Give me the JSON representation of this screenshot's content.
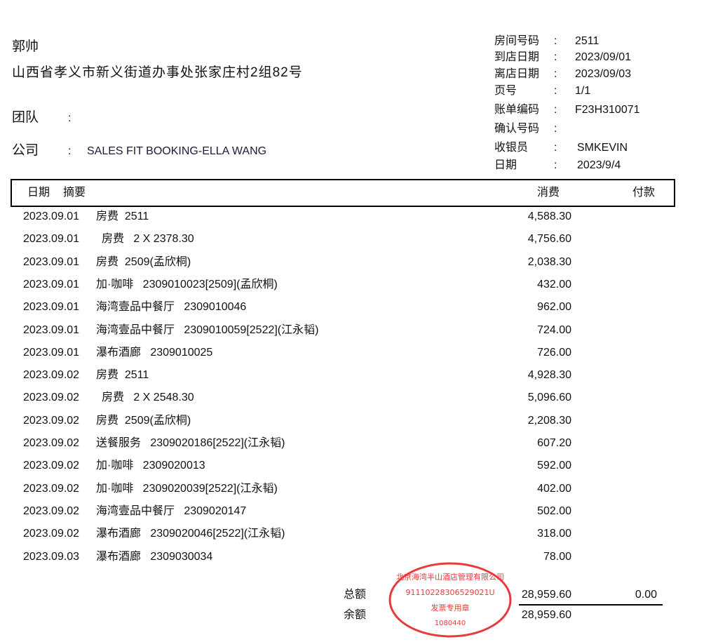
{
  "guest": {
    "name": "郭帅",
    "address": "山西省孝义市新义街道办事处张家庄村2组82号",
    "team_label": "团队",
    "team_value": "",
    "company_label": "公司",
    "company_value": "SALES FIT BOOKING-ELLA WANG",
    "colon": ":"
  },
  "info": [
    {
      "label": "房间号码",
      "value": "2511"
    },
    {
      "label": "到店日期",
      "value": "2023/09/01"
    },
    {
      "label": "离店日期",
      "value": "2023/09/03"
    },
    {
      "label": "页号",
      "value": "1/1"
    },
    {
      "label": "账单编码",
      "value": "F23H310071"
    },
    {
      "label": "确认号码",
      "value": ""
    },
    {
      "label": "收银员",
      "value": "SMKEVIN"
    },
    {
      "label": "日期",
      "value": "2023/9/4"
    }
  ],
  "table": {
    "headers": {
      "date": "日期",
      "summary": "摘要",
      "charge": "消费",
      "payment": "付款"
    },
    "rows": [
      {
        "date": "2023.09.01",
        "desc": "房费  2511",
        "amount": "4,588.30"
      },
      {
        "date": "2023.09.01",
        "desc": "房费   2 X 2378.30",
        "amount": "4,756.60"
      },
      {
        "date": "2023.09.01",
        "desc": "房费  2509(孟欣桐)",
        "amount": "2,038.30"
      },
      {
        "date": "2023.09.01",
        "desc": "加·咖啡   2309010023[2509](孟欣桐)",
        "amount": "432.00"
      },
      {
        "date": "2023.09.01",
        "desc": "海湾壹品中餐厅   2309010046",
        "amount": "962.00"
      },
      {
        "date": "2023.09.01",
        "desc": "海湾壹品中餐厅   2309010059[2522](江永韬)",
        "amount": "724.00"
      },
      {
        "date": "2023.09.01",
        "desc": "瀑布酒廊   2309010025",
        "amount": "726.00"
      },
      {
        "date": "2023.09.02",
        "desc": "房费  2511",
        "amount": "4,928.30"
      },
      {
        "date": "2023.09.02",
        "desc": "房费   2 X 2548.30",
        "amount": "5,096.60"
      },
      {
        "date": "2023.09.02",
        "desc": "房费  2509(孟欣桐)",
        "amount": "2,208.30"
      },
      {
        "date": "2023.09.02",
        "desc": "送餐服务   2309020186[2522](江永韬)",
        "amount": "607.20"
      },
      {
        "date": "2023.09.02",
        "desc": "加·咖啡   2309020013",
        "amount": "592.00"
      },
      {
        "date": "2023.09.02",
        "desc": "加·咖啡   2309020039[2522](江永韬)",
        "amount": "402.00"
      },
      {
        "date": "2023.09.02",
        "desc": "海湾壹品中餐厅   2309020147",
        "amount": "502.00"
      },
      {
        "date": "2023.09.02",
        "desc": "瀑布酒廊   2309020046[2522](江永韬)",
        "amount": "318.00"
      },
      {
        "date": "2023.09.03",
        "desc": "瀑布酒廊   2309030034",
        "amount": "78.00"
      }
    ]
  },
  "totals": {
    "total_label": "总额",
    "total_charge": "28,959.60",
    "total_payment": "0.00",
    "balance_label": "余额",
    "balance": "28,959.60"
  },
  "stamp": {
    "company": "北京海湾半山酒店管理有限公司",
    "tax_id": "91110228306529021U",
    "type": "发票专用章",
    "number": "1080440",
    "color": "#e83a3a"
  }
}
